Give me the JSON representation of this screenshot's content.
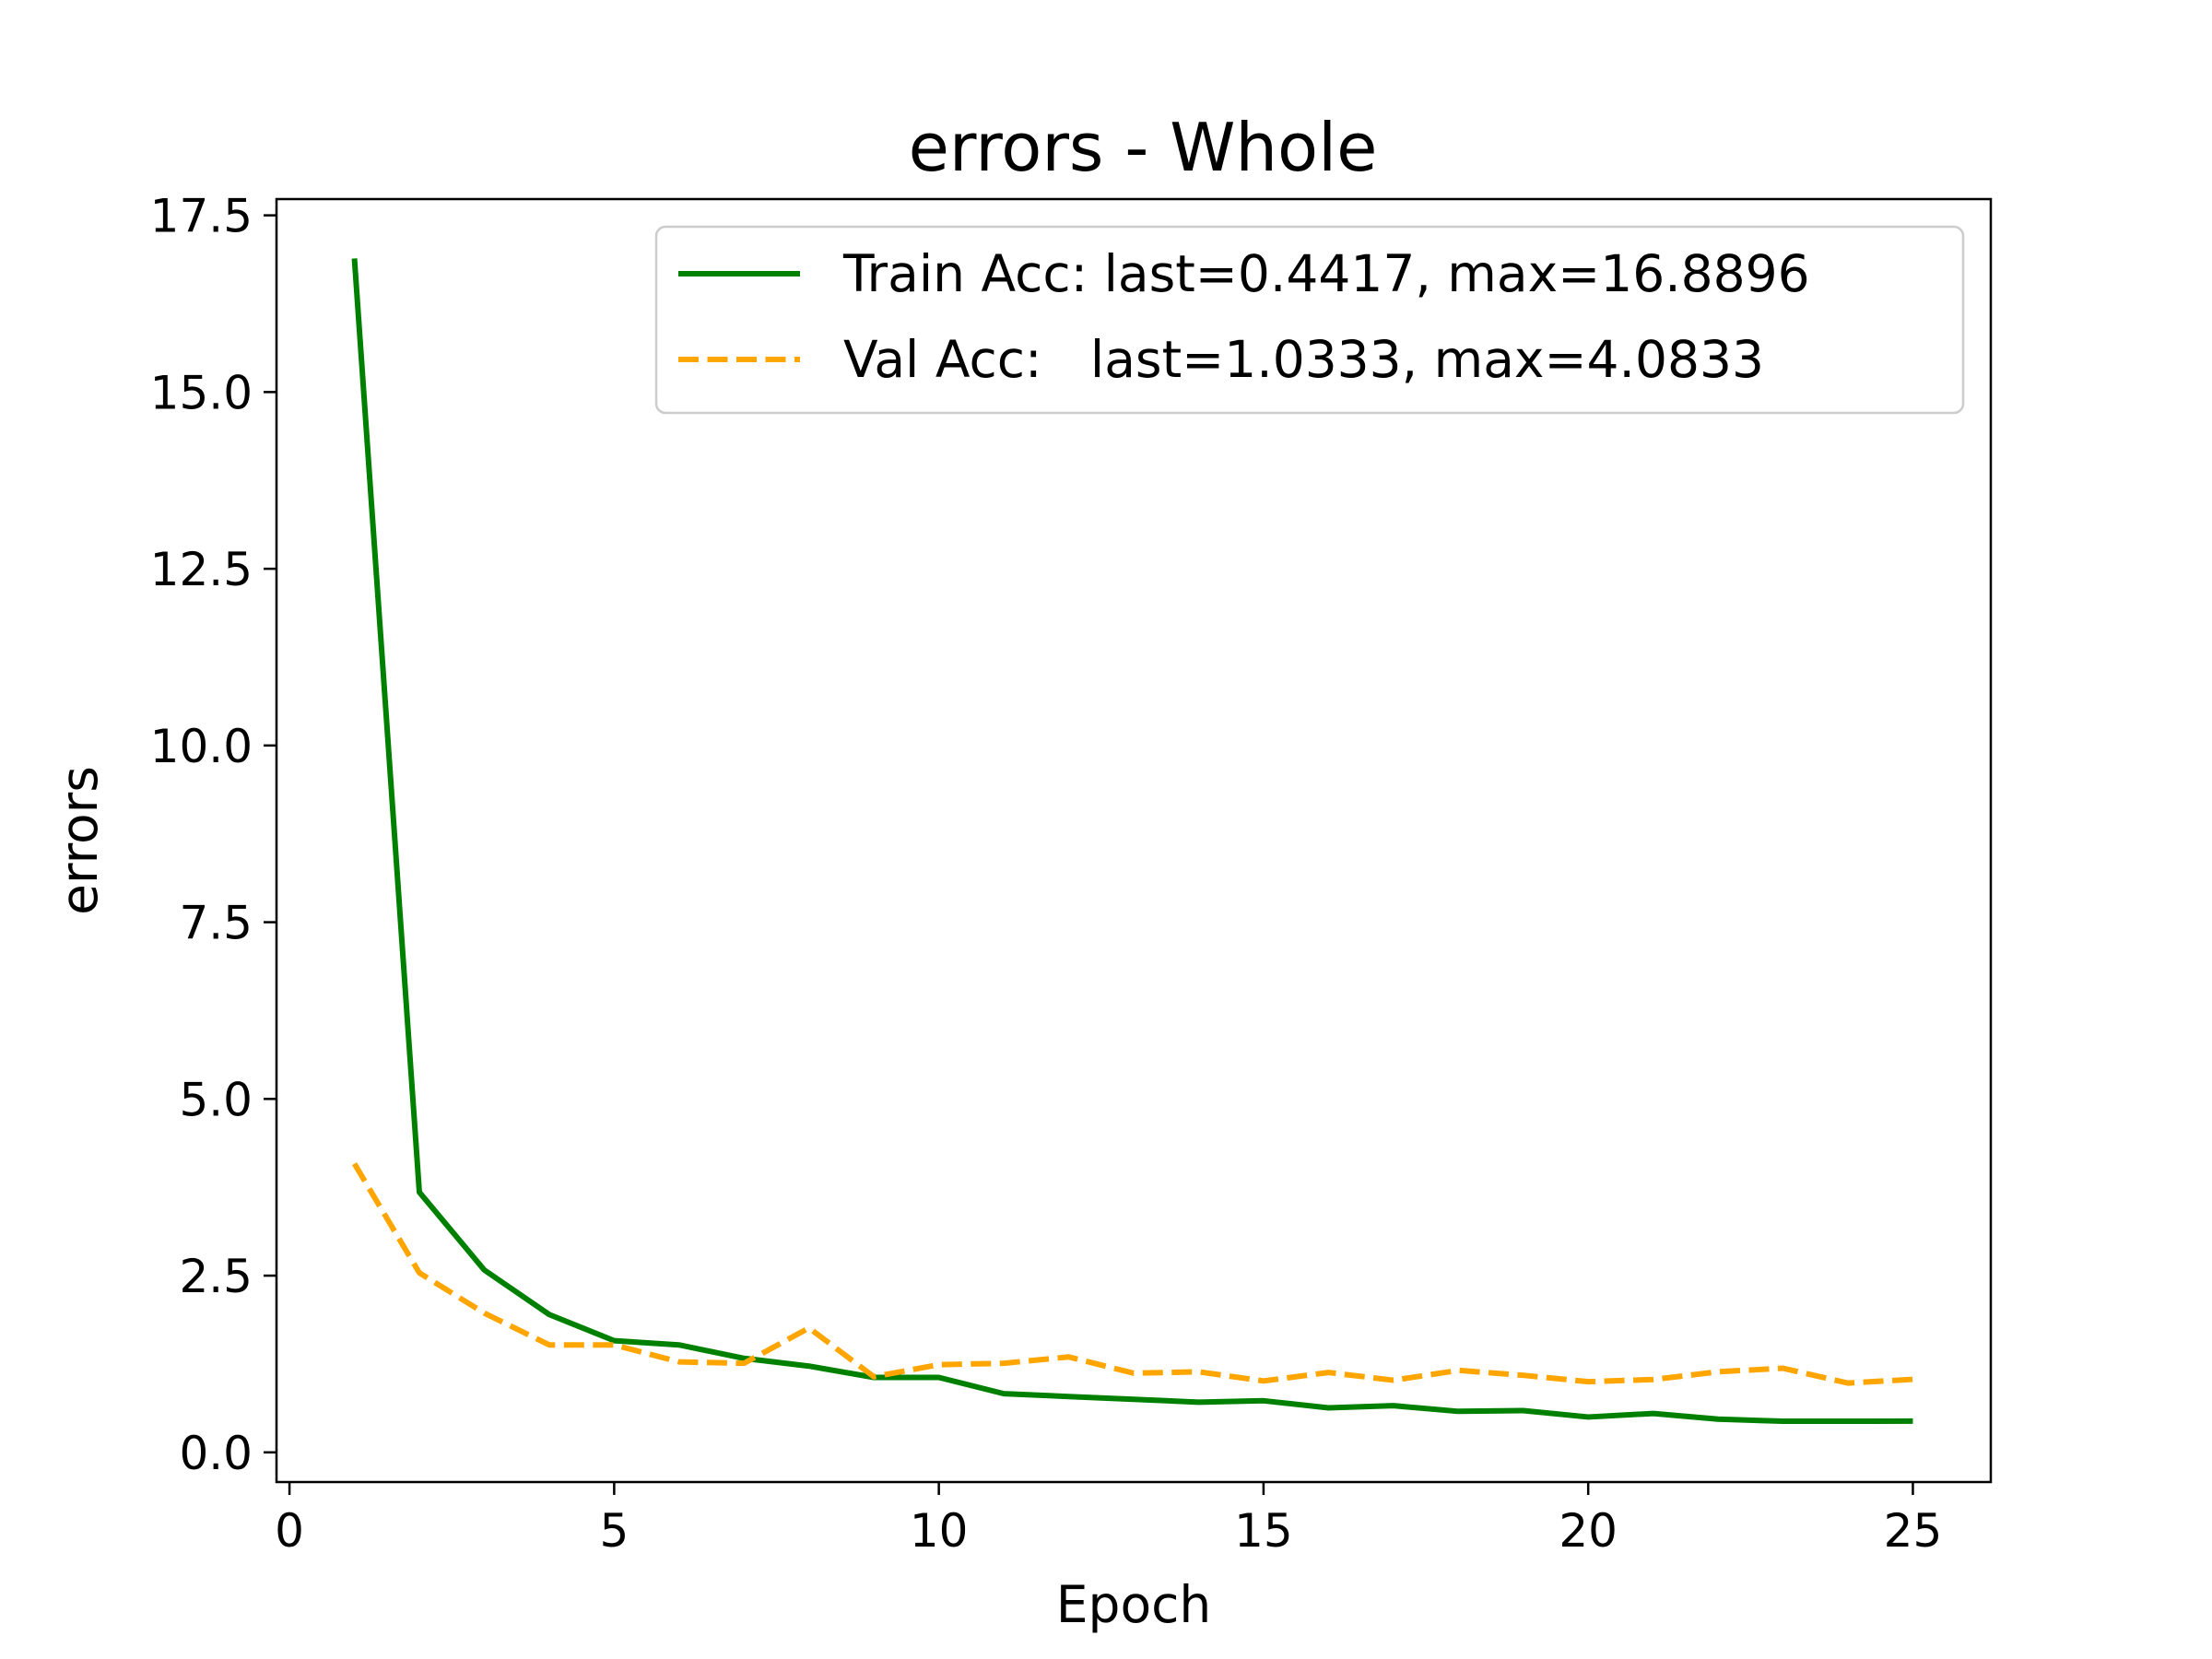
{
  "chart_data": {
    "type": "line",
    "title": "errors - Whole",
    "xlabel": "Epoch",
    "ylabel": "errors",
    "xlim": [
      -0.2,
      26.2
    ],
    "ylim": [
      -0.42,
      17.73
    ],
    "xticks": [
      0,
      5,
      10,
      15,
      20,
      25
    ],
    "yticks": [
      0.0,
      2.5,
      5.0,
      7.5,
      10.0,
      12.5,
      15.0,
      17.5
    ],
    "xtick_labels": [
      "0",
      "5",
      "10",
      "15",
      "20",
      "25"
    ],
    "ytick_labels": [
      "0.0",
      "2.5",
      "5.0",
      "7.5",
      "10.0",
      "12.5",
      "15.0",
      "17.5"
    ],
    "grid": false,
    "legend_position": "top-right",
    "x": [
      1,
      2,
      3,
      4,
      5,
      6,
      7,
      8,
      9,
      10,
      11,
      12,
      13,
      14,
      15,
      16,
      17,
      18,
      19,
      20,
      21,
      22,
      23,
      24,
      25
    ],
    "series": [
      {
        "name": "Train Acc: last=0.4417, max=16.8896",
        "color": "#008000",
        "style": "solid",
        "values": [
          16.8896,
          3.68,
          2.58,
          1.95,
          1.58,
          1.52,
          1.33,
          1.22,
          1.06,
          1.06,
          0.83,
          0.79,
          0.75,
          0.71,
          0.73,
          0.63,
          0.66,
          0.58,
          0.59,
          0.5,
          0.55,
          0.47,
          0.44,
          0.44,
          0.4417
        ]
      },
      {
        "name": "Val Acc:   last=1.0333, max=4.0833",
        "color": "#FFA500",
        "style": "dashed",
        "values": [
          4.0833,
          2.54,
          1.97,
          1.52,
          1.52,
          1.28,
          1.26,
          1.76,
          1.07,
          1.24,
          1.26,
          1.35,
          1.12,
          1.14,
          1.01,
          1.13,
          1.02,
          1.16,
          1.09,
          1.0,
          1.03,
          1.14,
          1.19,
          0.98,
          1.0333
        ]
      }
    ]
  }
}
